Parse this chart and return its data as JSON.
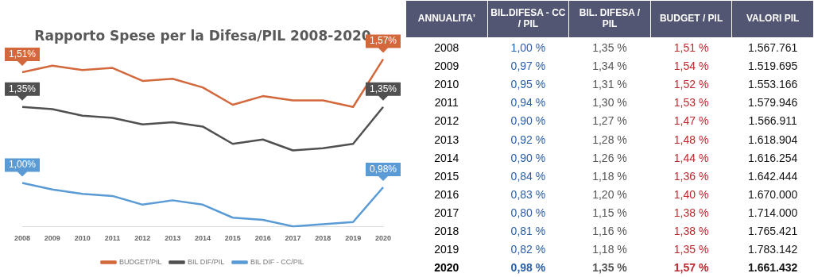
{
  "chart_data": [
    {
      "type": "line",
      "title": "Rapporto Spese per la Difesa/PIL 2008-2020",
      "categories": [
        "2008",
        "2009",
        "2010",
        "2011",
        "2012",
        "2013",
        "2014",
        "2015",
        "2016",
        "2017",
        "2018",
        "2019",
        "2020"
      ],
      "tick_labels": "x",
      "grid": false,
      "legend": "bottom",
      "marker": "none",
      "line_style": "solid",
      "series": [
        {
          "name": "BUDGET/PIL",
          "color": "#d4683d",
          "values": [
            1.51,
            1.54,
            1.52,
            1.53,
            1.47,
            1.48,
            1.44,
            1.36,
            1.4,
            1.38,
            1.38,
            1.35,
            1.57
          ],
          "value_labels": [
            "1,51%",
            null,
            null,
            null,
            null,
            null,
            null,
            null,
            null,
            null,
            null,
            null,
            "1,57%"
          ]
        },
        {
          "name": "BIL DIF/PIL",
          "color": "#505050",
          "values": [
            1.35,
            1.34,
            1.31,
            1.3,
            1.27,
            1.28,
            1.26,
            1.18,
            1.2,
            1.15,
            1.16,
            1.18,
            1.35
          ],
          "value_labels": [
            "1,35%",
            null,
            null,
            null,
            null,
            null,
            null,
            null,
            null,
            null,
            null,
            null,
            "1,35%"
          ]
        },
        {
          "name": "BIL DIF - CC/PIL",
          "color": "#5b9bd5",
          "values": [
            1.0,
            0.97,
            0.95,
            0.94,
            0.9,
            0.92,
            0.9,
            0.84,
            0.83,
            0.8,
            0.81,
            0.82,
            0.98
          ],
          "value_labels": [
            "1,00%",
            null,
            null,
            null,
            null,
            null,
            null,
            null,
            null,
            null,
            null,
            null,
            "0,98%"
          ]
        }
      ]
    },
    {
      "type": "heatmap",
      "ylabel": "ANNUALITA'",
      "categories": [
        "BIL.DIFESA - CC / PIL",
        "BIL. DIFESA / PIL",
        "BUDGET / PIL",
        "VALORI PIL"
      ],
      "colors": [
        "#2a5ea8",
        "#555555",
        "#c0262d",
        "#111111"
      ],
      "y_categories": [
        "2008",
        "2009",
        "2010",
        "2011",
        "2012",
        "2013",
        "2014",
        "2015",
        "2016",
        "2017",
        "2018",
        "2019",
        "2020"
      ],
      "cells": [
        [
          "1,00 %",
          "1,35 %",
          "1,51 %",
          "1.567.761"
        ],
        [
          "0,97 %",
          "1,34 %",
          "1,54 %",
          "1.519.695"
        ],
        [
          "0,95 %",
          "1,31 %",
          "1,52 %",
          "1.553.166"
        ],
        [
          "0,94 %",
          "1,30 %",
          "1,53 %",
          "1.579.946"
        ],
        [
          "0,90 %",
          "1,27 %",
          "1,47 %",
          "1.566.911"
        ],
        [
          "0,92 %",
          "1,28 %",
          "1,48 %",
          "1.618.904"
        ],
        [
          "0,90 %",
          "1,26 %",
          "1,44 %",
          "1.616.254"
        ],
        [
          "0,84 %",
          "1,18 %",
          "1,36 %",
          "1.642.444"
        ],
        [
          "0,83 %",
          "1,20 %",
          "1,40 %",
          "1.670.000"
        ],
        [
          "0,80 %",
          "1,15 %",
          "1,38 %",
          "1.714.000"
        ],
        [
          "0,81 %",
          "1,16 %",
          "1,38 %",
          "1.765.421"
        ],
        [
          "0,82 %",
          "1,18 %",
          "1,35 %",
          "1.783.142"
        ],
        [
          "0,98 %",
          "1,35 %",
          "1,57 %",
          "1.661.432"
        ]
      ]
    }
  ]
}
